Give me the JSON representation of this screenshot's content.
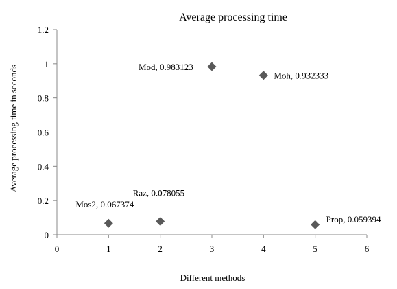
{
  "chart_data": {
    "type": "scatter",
    "title": "Average processing time",
    "xlabel": "Different methods",
    "ylabel": "Average processing  time in seconds",
    "xlim": [
      0,
      6
    ],
    "ylim": [
      0,
      1.2
    ],
    "x_ticks": [
      "0",
      "1",
      "2",
      "3",
      "4",
      "5",
      "6"
    ],
    "y_ticks": [
      "0",
      "0.2",
      "0.4",
      "0.6",
      "0.8",
      "1",
      "1.2"
    ],
    "grid": false,
    "legend": "none",
    "marker": "diamond",
    "marker_color": "#595959",
    "points": [
      {
        "label": "Mos2, 0.067374",
        "x": 1,
        "y": 0.067374
      },
      {
        "label": "Raz, 0.078055",
        "x": 2,
        "y": 0.078055
      },
      {
        "label": "Mod, 0.983123",
        "x": 3,
        "y": 0.983123
      },
      {
        "label": "Moh, 0.932333",
        "x": 4,
        "y": 0.932333
      },
      {
        "label": "Prop, 0.059394",
        "x": 5,
        "y": 0.059394
      }
    ]
  }
}
